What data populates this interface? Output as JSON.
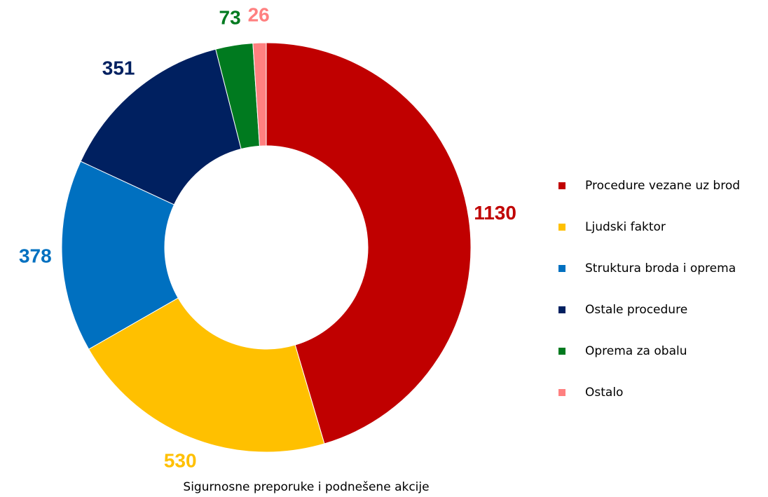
{
  "chart_data": {
    "type": "donut",
    "title": "Sigurnosne preporuke i podnešene akcije",
    "categories": [
      "Procedure vezane uz brod",
      "Ljudski faktor",
      "Struktura broda i oprema",
      "Ostale procedure",
      "Oprema za obalu",
      "Ostalo"
    ],
    "values": [
      1130,
      530,
      378,
      351,
      73,
      26
    ],
    "colors": [
      "#c00000",
      "#ffc000",
      "#0070c0",
      "#002060",
      "#007a1f",
      "#ff8080"
    ],
    "legend": "right"
  }
}
